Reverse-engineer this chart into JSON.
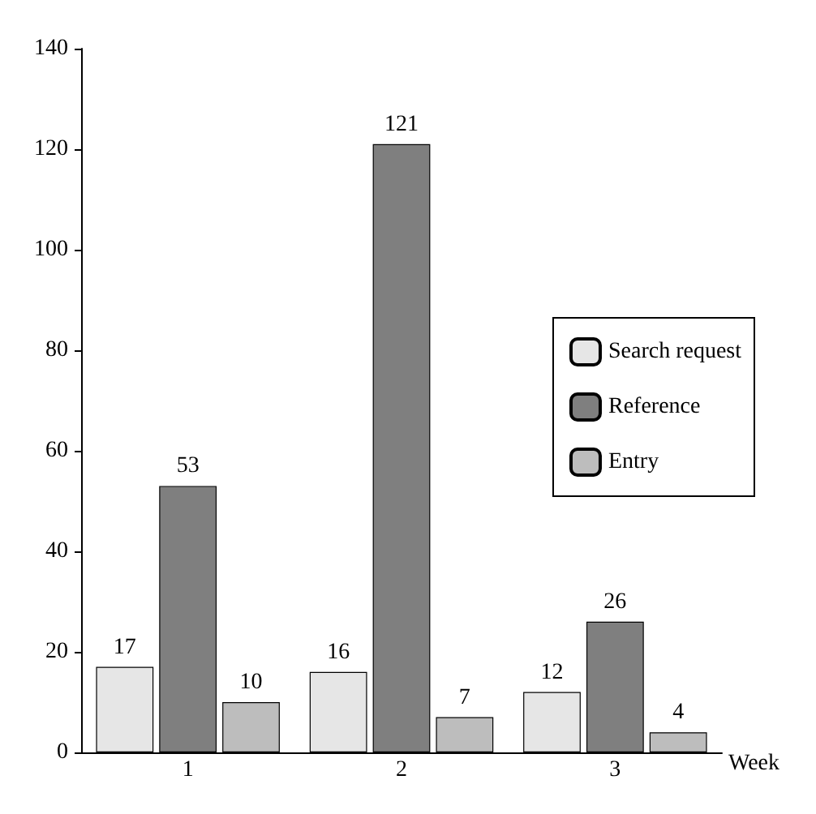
{
  "chart_data": {
    "type": "bar",
    "xlabel": "Week",
    "categories": [
      "1",
      "2",
      "3"
    ],
    "series": [
      {
        "name": "Search request",
        "color": "#e6e6e6",
        "values": [
          17,
          16,
          12
        ]
      },
      {
        "name": "Reference",
        "color": "#7f7f7f",
        "values": [
          53,
          121,
          26
        ]
      },
      {
        "name": "Entry",
        "color": "#bdbdbd",
        "values": [
          10,
          7,
          4
        ]
      }
    ],
    "ylim": [
      0,
      140
    ],
    "yticks": [
      0,
      20,
      40,
      60,
      80,
      100,
      120,
      140
    ],
    "grid": false,
    "legend": "right",
    "data_labels": true
  }
}
